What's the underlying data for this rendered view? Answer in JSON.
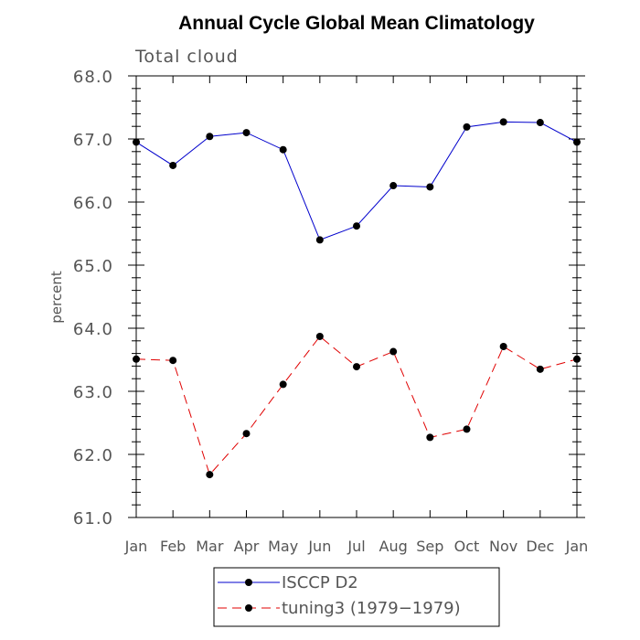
{
  "chart_data": {
    "type": "line",
    "title": "Annual Cycle Global Mean Climatology",
    "subtitle": "Total cloud",
    "ylabel": "percent",
    "xlabel": "",
    "categories": [
      "Jan",
      "Feb",
      "Mar",
      "Apr",
      "May",
      "Jun",
      "Jul",
      "Aug",
      "Sep",
      "Oct",
      "Nov",
      "Dec",
      "Jan"
    ],
    "ylim": [
      61.0,
      68.0
    ],
    "yticks": [
      "61.0",
      "62.0",
      "63.0",
      "64.0",
      "65.0",
      "66.0",
      "67.0",
      "68.0"
    ],
    "series": [
      {
        "name": "ISCCP D2",
        "color": "#0000cc",
        "dash": "solid",
        "values": [
          66.95,
          66.58,
          67.04,
          67.1,
          66.83,
          65.4,
          65.62,
          66.26,
          66.24,
          67.19,
          67.27,
          67.26,
          66.95
        ]
      },
      {
        "name": "tuning3 (1979−1979)",
        "color": "#e00000",
        "dash": "dashed",
        "values": [
          63.51,
          63.49,
          61.68,
          62.33,
          63.11,
          63.87,
          63.39,
          63.63,
          62.27,
          62.4,
          63.71,
          63.35,
          63.51
        ]
      }
    ],
    "grid": false,
    "legend": "bottom"
  }
}
